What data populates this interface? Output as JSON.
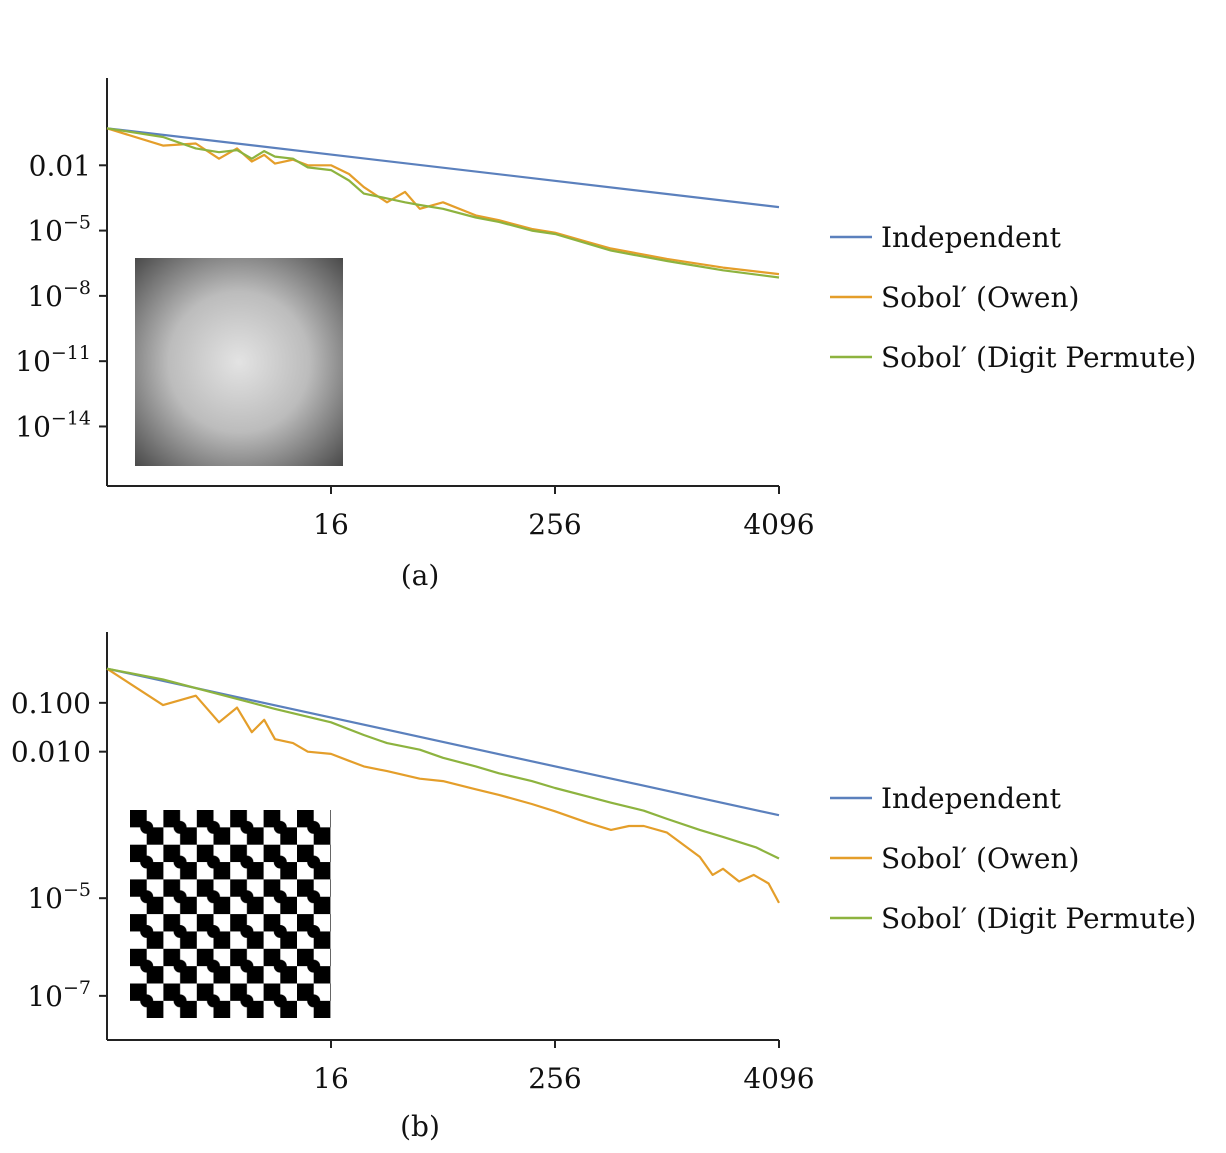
{
  "chart_data": [
    {
      "type": "line",
      "caption": "(a)",
      "x_scale": "log2",
      "y_scale": "log10",
      "xlim": [
        1,
        4096
      ],
      "ylim": [
        1e-16,
        10
      ],
      "xticks": [
        {
          "value": 16,
          "label": "16"
        },
        {
          "value": 256,
          "label": "256"
        },
        {
          "value": 4096,
          "label": "4096"
        }
      ],
      "yticks": [
        {
          "value": 0.01,
          "label": "0.01",
          "exp": ""
        },
        {
          "value": 1e-05,
          "label": "10",
          "exp": "−5"
        },
        {
          "value": 1e-08,
          "label": "10",
          "exp": "−8"
        },
        {
          "value": 1e-11,
          "label": "10",
          "exp": "−11"
        },
        {
          "value": 1e-14,
          "label": "10",
          "exp": "−14"
        }
      ],
      "legend_position": "right",
      "inset": "radial-gradient",
      "series": [
        {
          "name": "Independent",
          "color": "#5b80bd",
          "x": [
            1,
            4096
          ],
          "y": [
            0.5,
            0.00012
          ]
        },
        {
          "name": "Sobol′ (Owen)",
          "color": "#e49e2a",
          "x": [
            1,
            2,
            3,
            4,
            5,
            6,
            7,
            8,
            10,
            12,
            16,
            20,
            24,
            32,
            40,
            48,
            64,
            96,
            128,
            192,
            256,
            384,
            512,
            1024,
            2048,
            4096
          ],
          "y": [
            0.5,
            0.08,
            0.1,
            0.02,
            0.06,
            0.015,
            0.03,
            0.012,
            0.018,
            0.01,
            0.01,
            0.004,
            0.001,
            0.0002,
            0.0006,
            0.0001,
            0.0002,
            5e-05,
            3e-05,
            1.2e-05,
            8e-06,
            3e-06,
            1.5e-06,
            5e-07,
            2e-07,
            1e-07
          ]
        },
        {
          "name": "Sobol′ (Digit Permute)",
          "color": "#8db33f",
          "x": [
            1,
            2,
            3,
            4,
            5,
            6,
            7,
            8,
            10,
            12,
            16,
            20,
            24,
            32,
            40,
            48,
            64,
            96,
            128,
            192,
            256,
            384,
            512,
            1024,
            2048,
            4096
          ],
          "y": [
            0.5,
            0.2,
            0.06,
            0.04,
            0.05,
            0.02,
            0.045,
            0.025,
            0.02,
            0.008,
            0.006,
            0.002,
            0.0005,
            0.0003,
            0.0002,
            0.00015,
            0.0001,
            4e-05,
            2.5e-05,
            1e-05,
            7e-06,
            2.5e-06,
            1.2e-06,
            4e-07,
            1.5e-07,
            7e-08
          ]
        }
      ]
    },
    {
      "type": "line",
      "caption": "(b)",
      "x_scale": "log2",
      "y_scale": "log10",
      "xlim": [
        1,
        4096
      ],
      "ylim": [
        2e-08,
        1
      ],
      "xticks": [
        {
          "value": 16,
          "label": "16"
        },
        {
          "value": 256,
          "label": "256"
        },
        {
          "value": 4096,
          "label": "4096"
        }
      ],
      "yticks": [
        {
          "value": 0.1,
          "label": "0.100",
          "exp": ""
        },
        {
          "value": 0.01,
          "label": "0.010",
          "exp": ""
        },
        {
          "value": 1e-05,
          "label": "10",
          "exp": "−5"
        },
        {
          "value": 1e-07,
          "label": "10",
          "exp": "−7"
        }
      ],
      "legend_position": "right",
      "inset": "checkerboard",
      "series": [
        {
          "name": "Independent",
          "color": "#5b80bd",
          "x": [
            1,
            4096
          ],
          "y": [
            0.5,
            0.0005
          ]
        },
        {
          "name": "Sobol′ (Owen)",
          "color": "#e49e2a",
          "x": [
            1,
            2,
            3,
            4,
            5,
            6,
            7,
            8,
            10,
            12,
            16,
            20,
            24,
            32,
            48,
            64,
            96,
            128,
            192,
            256,
            384,
            512,
            640,
            768,
            1024,
            1536,
            1800,
            2048,
            2500,
            3000,
            3600,
            4096
          ],
          "y": [
            0.5,
            0.09,
            0.14,
            0.04,
            0.08,
            0.025,
            0.045,
            0.018,
            0.015,
            0.01,
            0.009,
            0.0065,
            0.005,
            0.004,
            0.0028,
            0.0025,
            0.0017,
            0.0013,
            0.00085,
            0.0006,
            0.00035,
            0.00025,
            0.0003,
            0.0003,
            0.00022,
            7e-05,
            3e-05,
            4e-05,
            2.2e-05,
            3e-05,
            2e-05,
            8e-06
          ]
        },
        {
          "name": "Sobol′ (Digit Permute)",
          "color": "#8db33f",
          "x": [
            1,
            2,
            4,
            8,
            16,
            24,
            32,
            48,
            64,
            96,
            128,
            192,
            256,
            384,
            512,
            768,
            1024,
            1536,
            2048,
            3072,
            4096
          ],
          "y": [
            0.5,
            0.3,
            0.15,
            0.075,
            0.04,
            0.022,
            0.015,
            0.011,
            0.0075,
            0.005,
            0.0036,
            0.0025,
            0.0018,
            0.0012,
            0.0009,
            0.00062,
            0.00042,
            0.00025,
            0.00018,
            0.00011,
            6.5e-05
          ]
        }
      ]
    }
  ]
}
